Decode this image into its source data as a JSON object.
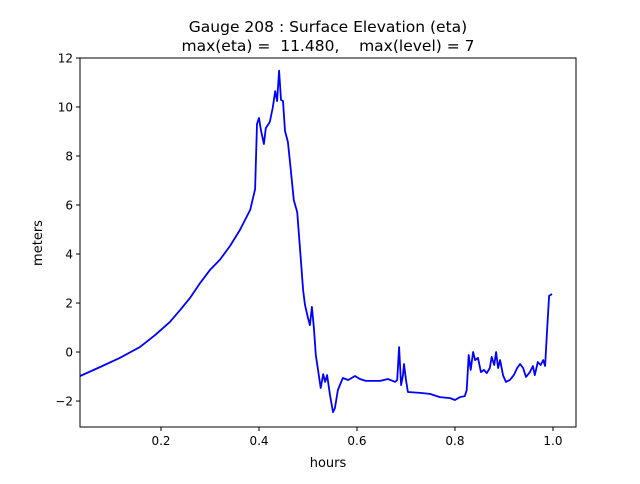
{
  "chart_data": {
    "type": "line",
    "title": "Gauge 208 : Surface Elevation (eta)",
    "subtitle": "max(eta) =  11.480,    max(level) = 7",
    "xlabel": "hours",
    "ylabel": "meters",
    "xlim": [
      0.0347,
      1.047
    ],
    "ylim": [
      -3.06,
      12
    ],
    "xticks": [
      0.2,
      0.4,
      0.6,
      0.8,
      1.0
    ],
    "xtick_labels": [
      "0.2",
      "0.4",
      "0.6",
      "0.8",
      "1.0"
    ],
    "yticks": [
      -2,
      0,
      2,
      4,
      6,
      8,
      10,
      12
    ],
    "ytick_labels": [
      "−2",
      "0",
      "2",
      "4",
      "6",
      "8",
      "10",
      "12"
    ],
    "grid": false,
    "series": [
      {
        "name": "eta",
        "color": "#0000ff",
        "x": [
          0.035,
          0.076,
          0.116,
          0.157,
          0.188,
          0.218,
          0.239,
          0.259,
          0.28,
          0.3,
          0.32,
          0.341,
          0.361,
          0.382,
          0.392,
          0.396,
          0.4,
          0.404,
          0.41,
          0.414,
          0.422,
          0.428,
          0.433,
          0.437,
          0.441,
          0.445,
          0.449,
          0.453,
          0.459,
          0.465,
          0.471,
          0.478,
          0.482,
          0.486,
          0.49,
          0.494,
          0.5,
          0.504,
          0.508,
          0.512,
          0.516,
          0.522,
          0.526,
          0.531,
          0.535,
          0.539,
          0.545,
          0.551,
          0.555,
          0.561,
          0.571,
          0.582,
          0.596,
          0.606,
          0.618,
          0.647,
          0.663,
          0.678,
          0.682,
          0.686,
          0.69,
          0.694,
          0.696,
          0.7,
          0.704,
          0.729,
          0.749,
          0.769,
          0.79,
          0.8,
          0.81,
          0.82,
          0.824,
          0.828,
          0.832,
          0.837,
          0.841,
          0.847,
          0.853,
          0.859,
          0.865,
          0.871,
          0.875,
          0.88,
          0.884,
          0.888,
          0.892,
          0.898,
          0.904,
          0.912,
          0.92,
          0.927,
          0.933,
          0.939,
          0.945,
          0.953,
          0.959,
          0.963,
          0.969,
          0.975,
          0.98,
          0.984,
          0.988,
          0.992,
          0.998
        ],
        "y": [
          -0.98,
          -0.61,
          -0.24,
          0.2,
          0.69,
          1.22,
          1.71,
          2.2,
          2.82,
          3.35,
          3.76,
          4.33,
          4.98,
          5.8,
          6.65,
          9.31,
          9.55,
          9.06,
          8.49,
          9.14,
          9.39,
          9.96,
          10.65,
          10.24,
          11.48,
          10.29,
          10.24,
          9.02,
          8.57,
          7.43,
          6.2,
          5.71,
          4.65,
          3.63,
          2.53,
          1.92,
          1.39,
          1.1,
          1.84,
          0.98,
          -0.12,
          -0.94,
          -1.47,
          -0.9,
          -1.22,
          -0.94,
          -1.76,
          -2.45,
          -2.29,
          -1.55,
          -1.06,
          -1.14,
          -0.98,
          -1.1,
          -1.18,
          -1.18,
          -1.1,
          -1.22,
          -1.14,
          0.2,
          -1.35,
          -0.94,
          -0.49,
          -1.14,
          -1.63,
          -1.67,
          -1.71,
          -1.84,
          -1.88,
          -1.96,
          -1.84,
          -1.8,
          -1.55,
          -0.12,
          -0.73,
          0.0,
          -0.33,
          -0.24,
          -0.82,
          -0.73,
          -0.86,
          -0.65,
          -0.2,
          -0.53,
          0.0,
          -0.65,
          -0.33,
          -0.94,
          -1.22,
          -1.14,
          -0.94,
          -0.65,
          -0.49,
          -0.65,
          -1.02,
          -0.82,
          -0.57,
          -0.94,
          -0.41,
          -0.53,
          -0.33,
          -0.57,
          0.9,
          2.29,
          2.37
        ]
      }
    ]
  }
}
